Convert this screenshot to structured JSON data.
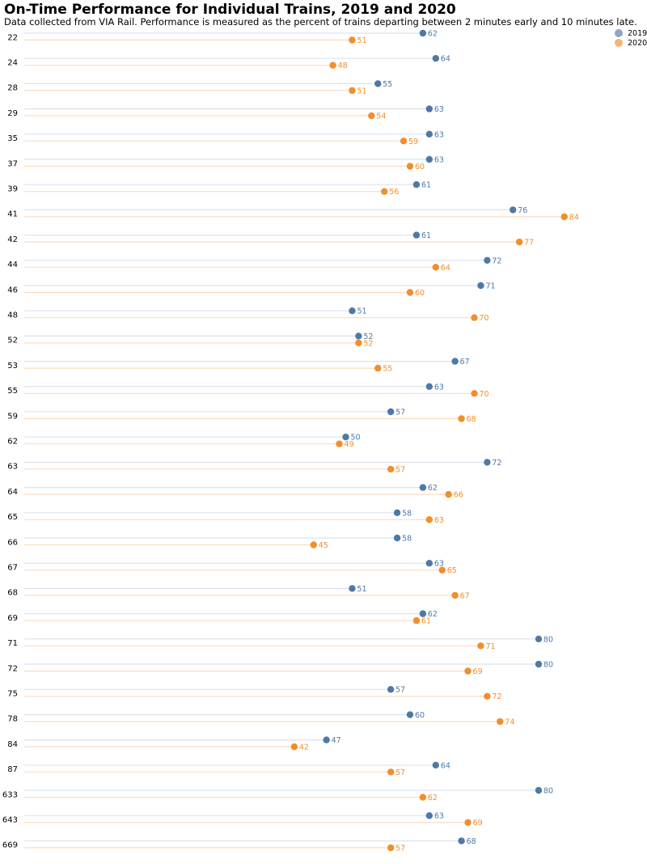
{
  "chart_data": {
    "type": "dot",
    "title": "On-Time Performance for Individual Trains, 2019 and 2020",
    "subtitle": "Data collected from VIA Rail. Performance is measured as the percent of trains departing between 2 minutes early and 10 minutes late.",
    "categories": [
      "22",
      "24",
      "28",
      "29",
      "35",
      "37",
      "39",
      "41",
      "42",
      "44",
      "46",
      "48",
      "52",
      "53",
      "55",
      "59",
      "62",
      "63",
      "64",
      "65",
      "66",
      "67",
      "68",
      "69",
      "71",
      "72",
      "75",
      "78",
      "84",
      "87",
      "633",
      "643",
      "669"
    ],
    "series": [
      {
        "name": "2019",
        "color": "#4e79a7",
        "values": [
          62,
          64,
          55,
          63,
          63,
          63,
          61,
          76,
          61,
          72,
          71,
          51,
          52,
          67,
          63,
          57,
          50,
          72,
          62,
          58,
          58,
          63,
          51,
          62,
          80,
          80,
          57,
          60,
          47,
          64,
          80,
          63,
          68
        ]
      },
      {
        "name": "2020",
        "color": "#f28e2b",
        "values": [
          51,
          48,
          51,
          54,
          59,
          60,
          56,
          84,
          77,
          64,
          60,
          70,
          52,
          55,
          70,
          68,
          49,
          57,
          66,
          63,
          45,
          65,
          67,
          61,
          71,
          69,
          72,
          74,
          42,
          57,
          62,
          69,
          57
        ]
      }
    ],
    "legend": {
      "placement": "top-right",
      "swatch_colors": [
        "#8ea5c4",
        "#f5b67a"
      ]
    },
    "xlim": [
      0,
      84
    ],
    "grid": false
  }
}
